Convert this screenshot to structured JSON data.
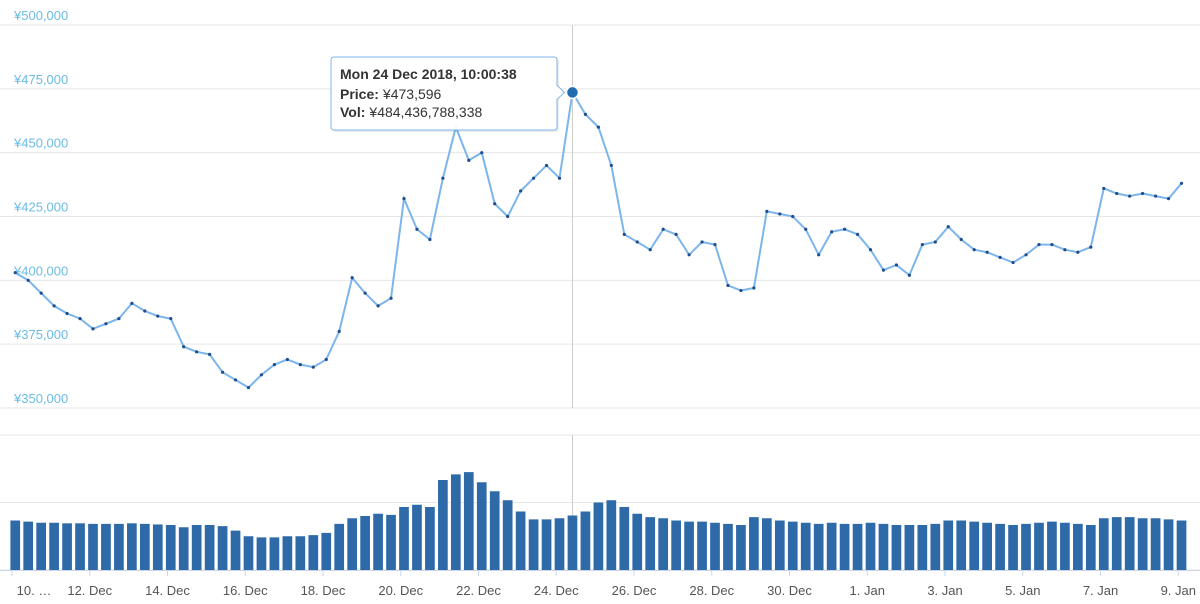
{
  "chart_data": [
    {
      "type": "line",
      "color": "#7cb5ec",
      "marker_color": "#1f4e8c",
      "x": [
        "2018-12-10T02:00",
        "2018-12-10T10:00",
        "2018-12-10T18:00",
        "2018-12-11T02:00",
        "2018-12-11T10:00",
        "2018-12-11T18:00",
        "2018-12-12T02:00",
        "2018-12-12T10:00",
        "2018-12-12T18:00",
        "2018-12-13T02:00",
        "2018-12-13T10:00",
        "2018-12-13T18:00",
        "2018-12-14T02:00",
        "2018-12-14T10:00",
        "2018-12-14T18:00",
        "2018-12-15T02:00",
        "2018-12-15T10:00",
        "2018-12-15T18:00",
        "2018-12-16T02:00",
        "2018-12-16T10:00",
        "2018-12-16T18:00",
        "2018-12-17T02:00",
        "2018-12-17T10:00",
        "2018-12-17T18:00",
        "2018-12-18T02:00",
        "2018-12-18T10:00",
        "2018-12-18T18:00",
        "2018-12-19T02:00",
        "2018-12-19T10:00",
        "2018-12-19T18:00",
        "2018-12-20T02:00",
        "2018-12-20T10:00",
        "2018-12-20T18:00",
        "2018-12-21T02:00",
        "2018-12-21T10:00",
        "2018-12-21T18:00",
        "2018-12-22T02:00",
        "2018-12-22T10:00",
        "2018-12-22T18:00",
        "2018-12-23T02:00",
        "2018-12-23T10:00",
        "2018-12-23T18:00",
        "2018-12-24T02:00",
        "2018-12-24T10:00",
        "2018-12-24T18:00",
        "2018-12-25T02:00",
        "2018-12-25T10:00",
        "2018-12-25T18:00",
        "2018-12-26T02:00",
        "2018-12-26T10:00",
        "2018-12-26T18:00",
        "2018-12-27T02:00",
        "2018-12-27T10:00",
        "2018-12-27T18:00",
        "2018-12-28T02:00",
        "2018-12-28T10:00",
        "2018-12-28T18:00",
        "2018-12-29T02:00",
        "2018-12-29T10:00",
        "2018-12-29T18:00",
        "2018-12-30T02:00",
        "2018-12-30T10:00",
        "2018-12-30T18:00",
        "2018-12-31T02:00",
        "2018-12-31T10:00",
        "2018-12-31T18:00",
        "2019-01-01T02:00",
        "2019-01-01T10:00",
        "2019-01-01T18:00",
        "2019-01-02T02:00",
        "2019-01-02T10:00",
        "2019-01-02T18:00",
        "2019-01-03T02:00",
        "2019-01-03T10:00",
        "2019-01-03T18:00",
        "2019-01-04T02:00",
        "2019-01-04T10:00",
        "2019-01-04T18:00",
        "2019-01-05T02:00",
        "2019-01-05T10:00",
        "2019-01-05T18:00",
        "2019-01-06T02:00",
        "2019-01-06T10:00",
        "2019-01-06T18:00",
        "2019-01-07T02:00",
        "2019-01-07T10:00",
        "2019-01-07T18:00",
        "2019-01-08T02:00",
        "2019-01-08T10:00",
        "2019-01-08T18:00",
        "2019-01-09T02:00"
      ],
      "values": [
        403000,
        400000,
        395000,
        390000,
        387000,
        385000,
        381000,
        383000,
        385000,
        391000,
        388000,
        386000,
        385000,
        374000,
        372000,
        371000,
        364000,
        361000,
        358000,
        363000,
        367000,
        369000,
        367000,
        366000,
        369000,
        380000,
        401000,
        395000,
        390000,
        393000,
        432000,
        420000,
        416000,
        440000,
        460000,
        447000,
        450000,
        430000,
        425000,
        435000,
        440000,
        445000,
        440000,
        473596,
        465000,
        460000,
        445000,
        418000,
        415000,
        412000,
        420000,
        418000,
        410000,
        415000,
        414000,
        398000,
        396000,
        397000,
        427000,
        426000,
        425000,
        420000,
        410000,
        419000,
        420000,
        418000,
        412000,
        404000,
        406000,
        402000,
        414000,
        415000,
        421000,
        416000,
        412000,
        411000,
        409000,
        407000,
        410000,
        414000,
        414000,
        412000,
        411000,
        413000,
        436000,
        434000,
        433000,
        434000,
        433000,
        432000,
        438000
      ],
      "xlim": [
        "2018-12-10T00:00",
        "2019-01-09T06:00"
      ],
      "xticks": [
        {
          "value": "2018-12-10T00:00",
          "label": "10. …"
        },
        {
          "value": "2018-12-12T00:00",
          "label": "12. Dec"
        },
        {
          "value": "2018-12-14T00:00",
          "label": "14. Dec"
        },
        {
          "value": "2018-12-16T00:00",
          "label": "16. Dec"
        },
        {
          "value": "2018-12-18T00:00",
          "label": "18. Dec"
        },
        {
          "value": "2018-12-20T00:00",
          "label": "20. Dec"
        },
        {
          "value": "2018-12-22T00:00",
          "label": "22. Dec"
        },
        {
          "value": "2018-12-24T00:00",
          "label": "24. Dec"
        },
        {
          "value": "2018-12-26T00:00",
          "label": "26. Dec"
        },
        {
          "value": "2018-12-28T00:00",
          "label": "28. Dec"
        },
        {
          "value": "2018-12-30T00:00",
          "label": "30. Dec"
        },
        {
          "value": "2019-01-01T00:00",
          "label": "1. Jan"
        },
        {
          "value": "2019-01-03T00:00",
          "label": "3. Jan"
        },
        {
          "value": "2019-01-05T00:00",
          "label": "5. Jan"
        },
        {
          "value": "2019-01-07T00:00",
          "label": "7. Jan"
        },
        {
          "value": "2019-01-09T00:00",
          "label": "9. Jan"
        }
      ],
      "ylim": [
        350000,
        500000
      ],
      "yticks": [
        {
          "value": 350000,
          "label": "¥350,000"
        },
        {
          "value": 375000,
          "label": "¥375,000"
        },
        {
          "value": 400000,
          "label": "¥400,000"
        },
        {
          "value": 425000,
          "label": "¥425,000"
        },
        {
          "value": 450000,
          "label": "¥450,000"
        },
        {
          "value": 475000,
          "label": "¥475,000"
        },
        {
          "value": 500000,
          "label": "¥500,000"
        }
      ],
      "grid": true
    },
    {
      "type": "bar",
      "color": "#2e6aa8",
      "values": [
        440000000000,
        430000000000,
        420000000000,
        420000000000,
        415000000000,
        415000000000,
        410000000000,
        410000000000,
        410000000000,
        415000000000,
        410000000000,
        405000000000,
        400000000000,
        380000000000,
        400000000000,
        400000000000,
        390000000000,
        350000000000,
        300000000000,
        290000000000,
        290000000000,
        300000000000,
        300000000000,
        310000000000,
        330000000000,
        410000000000,
        460000000000,
        480000000000,
        500000000000,
        490000000000,
        560000000000,
        580000000000,
        560000000000,
        800000000000,
        850000000000,
        870000000000,
        780000000000,
        700000000000,
        620000000000,
        520000000000,
        450000000000,
        450000000000,
        460000000000,
        484436788338,
        520000000000,
        600000000000,
        620000000000,
        560000000000,
        500000000000,
        470000000000,
        460000000000,
        440000000000,
        430000000000,
        430000000000,
        420000000000,
        410000000000,
        400000000000,
        470000000000,
        460000000000,
        440000000000,
        430000000000,
        420000000000,
        410000000000,
        420000000000,
        410000000000,
        410000000000,
        420000000000,
        410000000000,
        400000000000,
        400000000000,
        400000000000,
        410000000000,
        440000000000,
        440000000000,
        430000000000,
        420000000000,
        410000000000,
        400000000000,
        410000000000,
        420000000000,
        430000000000,
        420000000000,
        410000000000,
        400000000000,
        460000000000,
        470000000000,
        470000000000,
        460000000000,
        460000000000,
        450000000000,
        440000000000
      ],
      "ylim": [
        0,
        1200000000000
      ],
      "yticks": [
        0,
        600000000000,
        1200000000000
      ],
      "grid": true
    }
  ],
  "tooltip": {
    "date": "Mon 24 Dec 2018, 10:00:38",
    "price_label": "Price:",
    "price": "¥473,596",
    "vol_label": "Vol:",
    "vol": "¥484,436,788,338"
  }
}
